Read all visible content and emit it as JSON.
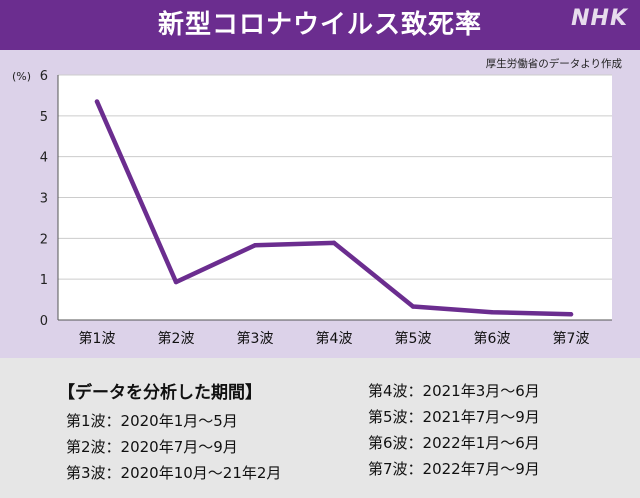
{
  "header": {
    "title": "新型コロナウイルス致死率",
    "logo": "NHK"
  },
  "source_note": "厚生労働省のデータより作成",
  "chart_data": {
    "type": "line",
    "categories": [
      "第1波",
      "第2波",
      "第3波",
      "第4波",
      "第5波",
      "第6波",
      "第7波"
    ],
    "series": [
      {
        "values": [
          5.35,
          0.93,
          1.83,
          1.89,
          0.33,
          0.19,
          0.14
        ]
      }
    ],
    "ylabel": "(%)",
    "ylim": [
      0,
      6
    ],
    "yticks": [
      "0",
      "1",
      "2",
      "3",
      "4",
      "5",
      "6"
    ],
    "grid": true,
    "colors": {
      "line": "#6b2d8f",
      "plot_bg": "#ffffff",
      "panel_bg": "#dcd2e9",
      "grid": "#cccccc"
    }
  },
  "periods": {
    "heading": "【データを分析した期間】",
    "left": [
      "第1波：2020年1月～5月",
      "第2波：2020年7月～9月",
      "第3波：2020年10月～21年2月"
    ],
    "right": [
      "第4波：2021年3月～6月",
      "第5波：2021年7月～9月",
      "第6波：2022年1月～6月",
      "第7波：2022年7月～9月"
    ]
  }
}
